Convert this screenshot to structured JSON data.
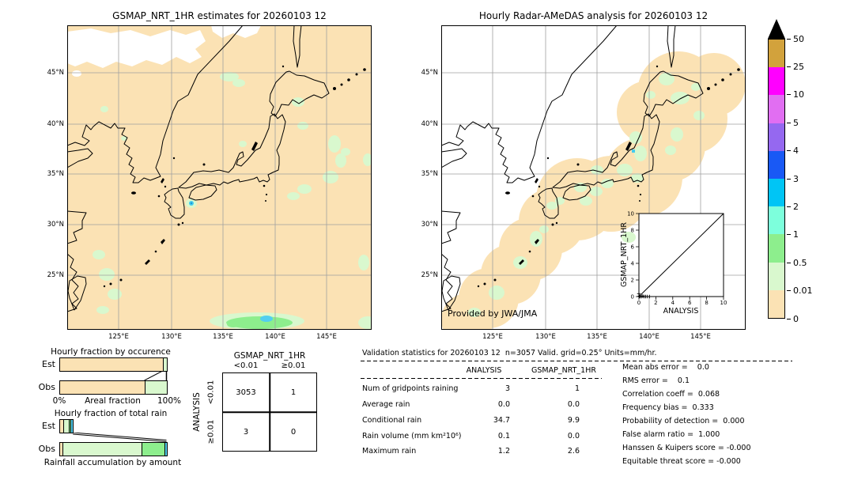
{
  "palette": {
    "peach": "#FBE2B4",
    "palegreen": "#D9F8CE",
    "green": "#8DEE8D",
    "aqua": "#7DFFDC",
    "cyan": "#52CFF0",
    "sky": "#00C5F5",
    "blue": "#1959F5",
    "purple": "#9568F0",
    "orchid": "#E16EF2",
    "magenta": "#FF00FF",
    "gold": "#D2A23C",
    "grid": "#a0a0a0"
  },
  "left_map": {
    "title": "GSMAP_NRT_1HR estimates for 20260103 12",
    "lat_ticks": [
      "45°N",
      "40°N",
      "35°N",
      "30°N",
      "25°N"
    ],
    "lon_ticks": [
      "125°E",
      "130°E",
      "135°E",
      "140°E",
      "145°E"
    ]
  },
  "right_map": {
    "title": "Hourly Radar-AMeDAS analysis for 20260103 12",
    "lat_ticks": [
      "45°N",
      "40°N",
      "35°N",
      "30°N",
      "25°N"
    ],
    "lon_ticks": [
      "125°E",
      "130°E",
      "135°E",
      "140°E",
      "145°E"
    ],
    "credit": "Provided by JWA/JMA",
    "inset": {
      "xlabel": "ANALYSIS",
      "ylabel": "GSMAP_NRT_1HR",
      "ticks": [
        "0",
        "2",
        "4",
        "6",
        "8",
        "10"
      ],
      "points": [
        [
          0.0,
          0.35
        ],
        [
          0.05,
          0.05
        ],
        [
          0.15,
          0.0
        ],
        [
          0.3,
          0.0
        ],
        [
          0.45,
          0.05
        ],
        [
          0.6,
          0.0
        ],
        [
          0.8,
          0.0
        ],
        [
          1.0,
          0.0
        ],
        [
          1.25,
          0.0
        ]
      ]
    }
  },
  "colorbar": {
    "segments": [
      "gold",
      "magenta",
      "orchid",
      "purple",
      "blue",
      "sky",
      "aqua",
      "green",
      "palegreen",
      "peach"
    ],
    "tick_labels": [
      "50",
      "25",
      "10",
      "5",
      "4",
      "3",
      "2",
      "1",
      "0.5",
      "0.01",
      "0"
    ]
  },
  "occurrence_chart": {
    "title": "Hourly fraction by occurence",
    "row_labels": [
      "Est",
      "Obs"
    ],
    "x_left": "0%",
    "x_label": "Areal fraction",
    "x_right": "100%",
    "est_segments": [
      {
        "color": "peach",
        "pct": 96
      },
      {
        "color": "palegreen",
        "pct": 4
      }
    ],
    "obs_segments": [
      {
        "color": "peach",
        "pct": 79
      },
      {
        "color": "palegreen",
        "pct": 21
      }
    ]
  },
  "total_rain_chart": {
    "title": "Hourly fraction of total rain",
    "row_labels": [
      "Est",
      "Obs"
    ],
    "x_label": "Rainfall accumulation by amount",
    "est_segments": [
      {
        "color": "peach",
        "pct": 3
      },
      {
        "color": "palegreen",
        "pct": 5
      },
      {
        "color": "green",
        "pct": 2
      },
      {
        "color": "cyan",
        "pct": 2
      }
    ],
    "obs_segments": [
      {
        "color": "peach",
        "pct": 2.5
      },
      {
        "color": "palegreen",
        "pct": 73.5
      },
      {
        "color": "green",
        "pct": 21.5
      },
      {
        "color": "cyan",
        "pct": 2.5
      }
    ]
  },
  "contingency": {
    "col_header": "GSMAP_NRT_1HR",
    "row_header": "ANALYSIS",
    "col_labels": [
      "<0.01",
      "≥0.01"
    ],
    "row_labels": [
      "<0.01",
      "≥0.01"
    ],
    "cells": [
      [
        "3053",
        "1"
      ],
      [
        "3",
        "0"
      ]
    ]
  },
  "stats": {
    "title": "Validation statistics for 20260103 12  n=3057 Valid. grid=0.25° Units=mm/hr.",
    "columns": [
      "ANALYSIS",
      "GSMAP_NRT_1HR"
    ],
    "rows": [
      {
        "label": "Num of gridpoints raining",
        "analysis": "3",
        "gsmap": "1"
      },
      {
        "label": "Average rain",
        "analysis": "0.0",
        "gsmap": "0.0"
      },
      {
        "label": "Conditional rain",
        "analysis": "34.7",
        "gsmap": "9.9"
      },
      {
        "label": "Rain volume (mm km²10⁶)",
        "analysis": "0.1",
        "gsmap": "0.0"
      },
      {
        "label": "Maximum rain",
        "analysis": "1.2",
        "gsmap": "2.6"
      }
    ]
  },
  "scores": {
    "lines": [
      "Mean abs error =    0.0",
      "RMS error =    0.1",
      "Correlation coeff =  0.068",
      "Frequency bias =  0.333",
      "Probability of detection =  0.000",
      "False alarm ratio =  1.000",
      "Hanssen & Kuipers score = -0.000",
      "Equitable threat score = -0.000"
    ]
  },
  "chart_data": [
    {
      "type": "heatmap",
      "subtype": "precipitation-map",
      "title": "GSMAP_NRT_1HR estimates for 20260103 12",
      "region": {
        "lon": [
          120,
          150
        ],
        "lat": [
          20,
          50
        ]
      },
      "units": "mm/hr",
      "scale_breaks": [
        0,
        0.01,
        0.5,
        1,
        2,
        3,
        4,
        5,
        10,
        25,
        50
      ],
      "notes": "mostly 0 (peach); scattered 0.01-0.5 patches; one 2-3 mm/hr spot south of Shikoku; 0.5-3 band near 140E,20N; no-data white area in NW corner"
    },
    {
      "type": "heatmap",
      "subtype": "precipitation-map",
      "title": "Hourly Radar-AMeDAS analysis for 20260103 12",
      "region": {
        "lon": [
          120,
          150
        ],
        "lat": [
          20,
          50
        ]
      },
      "units": "mm/hr",
      "scale_breaks": [
        0,
        0.01,
        0.5,
        1,
        2,
        3,
        4,
        5,
        10,
        25,
        50
      ],
      "notes": "radar coverage blobs (0 = peach) along Japanese archipelago with 0.01-0.5 patches and a 2-3 mm/hr pixel near Niigata; outside coverage is white"
    },
    {
      "type": "bar",
      "subtype": "stacked-horizontal",
      "title": "Hourly fraction by occurence",
      "categories": [
        "Est",
        "Obs"
      ],
      "xlabel": "Areal fraction",
      "xlim": [
        "0%",
        "100%"
      ],
      "series": [
        {
          "name": "0 mm/hr",
          "values": [
            96,
            79
          ]
        },
        {
          "name": "0.01-0.5 mm/hr",
          "values": [
            4,
            21
          ]
        }
      ]
    },
    {
      "type": "bar",
      "subtype": "stacked-horizontal",
      "title": "Hourly fraction of total rain",
      "categories": [
        "Est",
        "Obs"
      ],
      "xlabel": "Rainfall accumulation by amount",
      "series": [
        {
          "name": "0",
          "values": [
            3,
            2.5
          ]
        },
        {
          "name": "0.01-0.5",
          "values": [
            5,
            73.5
          ]
        },
        {
          "name": "0.5-1",
          "values": [
            2,
            21.5
          ]
        },
        {
          "name": "2-3",
          "values": [
            2,
            2.5
          ]
        }
      ]
    },
    {
      "type": "table",
      "title": "Contingency table",
      "columns": [
        "",
        "GSMAP_NRT_1HR <0.01",
        "GSMAP_NRT_1HR ≥0.01"
      ],
      "rows": [
        [
          "ANALYSIS <0.01",
          3053,
          1
        ],
        [
          "ANALYSIS ≥0.01",
          3,
          0
        ]
      ]
    },
    {
      "type": "table",
      "title": "Validation statistics for 20260103 12 n=3057 Valid. grid=0.25° Units=mm/hr.",
      "columns": [
        "",
        "ANALYSIS",
        "GSMAP_NRT_1HR"
      ],
      "rows": [
        [
          "Num of gridpoints raining",
          3,
          1
        ],
        [
          "Average rain",
          0.0,
          0.0
        ],
        [
          "Conditional rain",
          34.7,
          9.9
        ],
        [
          "Rain volume (mm km²10⁶)",
          0.1,
          0.0
        ],
        [
          "Maximum rain",
          1.2,
          2.6
        ]
      ]
    },
    {
      "type": "scatter",
      "title": "GSMAP_NRT_1HR vs ANALYSIS (inset)",
      "xlabel": "ANALYSIS",
      "ylabel": "GSMAP_NRT_1HR",
      "xlim": [
        0,
        10
      ],
      "ylim": [
        0,
        10
      ],
      "diagonal": true,
      "points": [
        [
          0.0,
          0.35
        ],
        [
          0.05,
          0.05
        ],
        [
          0.15,
          0.0
        ],
        [
          0.3,
          0.0
        ],
        [
          0.45,
          0.05
        ],
        [
          0.6,
          0.0
        ],
        [
          0.8,
          0.0
        ],
        [
          1.0,
          0.0
        ],
        [
          1.25,
          0.0
        ]
      ]
    },
    {
      "type": "table",
      "title": "Skill scores",
      "rows": [
        [
          "Mean abs error",
          0.0
        ],
        [
          "RMS error",
          0.1
        ],
        [
          "Correlation coeff",
          0.068
        ],
        [
          "Frequency bias",
          0.333
        ],
        [
          "Probability of detection",
          0.0
        ],
        [
          "False alarm ratio",
          1.0
        ],
        [
          "Hanssen & Kuipers score",
          -0.0
        ],
        [
          "Equitable threat score",
          -0.0
        ]
      ]
    }
  ]
}
